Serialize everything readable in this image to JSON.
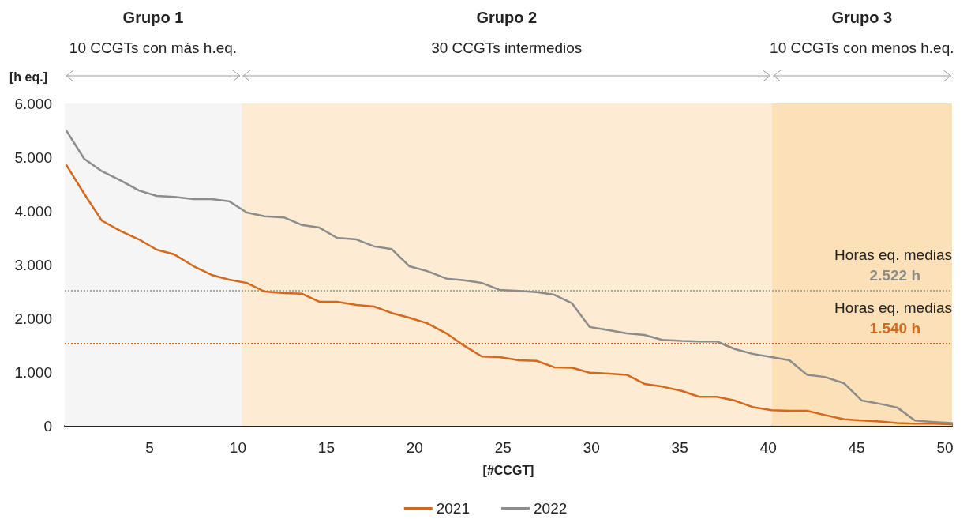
{
  "chart_data": {
    "type": "line",
    "xlabel": "[#CCGT]",
    "ylabel": "[h eq.]",
    "x": [
      0.3,
      1.3,
      2.3,
      3.4,
      4.4,
      5.4,
      6.4,
      7.5,
      8.5,
      9.5,
      10.5,
      11.5,
      12.6,
      13.6,
      14.6,
      15.6,
      16.7,
      17.7,
      18.7,
      19.7,
      20.7,
      21.8,
      22.8,
      23.8,
      24.8,
      25.9,
      26.9,
      27.9,
      28.9,
      29.9,
      31.0,
      32.0,
      33.0,
      34.0,
      35.1,
      36.1,
      37.1,
      38.1,
      39.1,
      40.2,
      41.2,
      42.2,
      43.2,
      44.3,
      45.3,
      46.3,
      47.3,
      48.3,
      49.4,
      50.4
    ],
    "series": [
      {
        "name": "2021",
        "color": "#d4691c",
        "values": [
          4850,
          4320,
          3820,
          3620,
          3470,
          3280,
          3190,
          2970,
          2810,
          2720,
          2660,
          2500,
          2470,
          2460,
          2310,
          2310,
          2250,
          2220,
          2100,
          2010,
          1910,
          1720,
          1490,
          1290,
          1280,
          1220,
          1210,
          1090,
          1080,
          990,
          970,
          950,
          780,
          730,
          650,
          540,
          540,
          470,
          350,
          290,
          280,
          280,
          200,
          120,
          100,
          80,
          50,
          40,
          40,
          30
        ]
      },
      {
        "name": "2022",
        "color": "#8c8c8c",
        "values": [
          5490,
          4970,
          4740,
          4560,
          4380,
          4280,
          4260,
          4220,
          4220,
          4180,
          3970,
          3900,
          3880,
          3740,
          3690,
          3500,
          3470,
          3340,
          3290,
          2970,
          2880,
          2740,
          2710,
          2660,
          2530,
          2510,
          2490,
          2440,
          2280,
          1840,
          1780,
          1720,
          1690,
          1600,
          1580,
          1570,
          1570,
          1430,
          1340,
          1280,
          1220,
          950,
          910,
          790,
          470,
          410,
          340,
          100,
          70,
          50
        ]
      }
    ],
    "xlim": [
      0.2,
      50.4
    ],
    "xticks": [
      5,
      10,
      15,
      20,
      25,
      30,
      35,
      40,
      45,
      50
    ],
    "ylim": [
      0,
      6000
    ],
    "yticks": [
      0,
      {
        "value": 1000,
        "label": "1.000"
      },
      {
        "value": 2000,
        "label": "2.000"
      },
      {
        "value": 3000,
        "label": "3.000"
      },
      {
        "value": 4000,
        "label": "4.000"
      },
      {
        "value": 5000,
        "label": "5.000"
      },
      {
        "value": 6000,
        "label": "6.000"
      }
    ],
    "bands": [
      {
        "axis": "x",
        "from": 0.2,
        "to": 10.2,
        "color": "#f5f5f5"
      },
      {
        "axis": "x",
        "from": 10.2,
        "to": 40.2,
        "color": "#fdebd3"
      },
      {
        "axis": "x",
        "from": 40.2,
        "to": 50.4,
        "color": "#fce0b8"
      }
    ],
    "annotations": [
      "Grupo 1",
      "10 CCGTs con más h.eq.",
      "Grupo 2",
      "30 CCGTs intermedios",
      "Grupo 3",
      "10 CCGTs con menos h.eq."
    ],
    "ref_lines": [
      {
        "axis": "y",
        "value": 2522,
        "label": "Horas eq. medias\n2.522 h",
        "color": "#a8a89a",
        "line_style": "dotted"
      },
      {
        "axis": "y",
        "value": 1540,
        "label": "Horas eq. medias\n1.540 h",
        "color": "#d4691c",
        "line_style": "dotted"
      }
    ],
    "grid": false,
    "legend": "bottom",
    "marker": "none",
    "line_style": "solid"
  }
}
